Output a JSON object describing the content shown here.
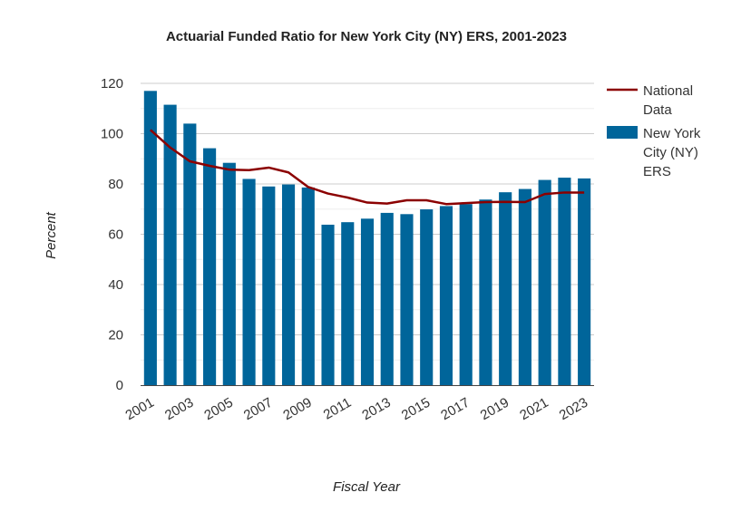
{
  "chart_data": {
    "type": "bar",
    "title": "Actuarial Funded Ratio for New York City (NY) ERS, 2001-2023",
    "xlabel": "Fiscal Year",
    "ylabel": "Percent",
    "ylim": [
      0,
      120
    ],
    "yticks": [
      0,
      20,
      40,
      60,
      80,
      100,
      120
    ],
    "grid": true,
    "legend_position": "right",
    "categories": [
      "2001",
      "2002",
      "2003",
      "2004",
      "2005",
      "2006",
      "2007",
      "2008",
      "2009",
      "2010",
      "2011",
      "2012",
      "2013",
      "2014",
      "2015",
      "2016",
      "2017",
      "2018",
      "2019",
      "2020",
      "2021",
      "2022",
      "2023"
    ],
    "x_tick_labels": [
      "2001",
      "2003",
      "2005",
      "2007",
      "2009",
      "2011",
      "2013",
      "2015",
      "2017",
      "2019",
      "2021",
      "2023"
    ],
    "series": [
      {
        "name": "New York City (NY) ERS",
        "legend_lines": [
          "New York",
          "City (NY)",
          "ERS"
        ],
        "type": "bar",
        "color": "#00659a",
        "values": [
          117,
          111.5,
          104,
          94.2,
          88.4,
          82,
          79,
          79.8,
          78.6,
          63.8,
          64.8,
          66.2,
          68.5,
          68,
          69.9,
          71.2,
          72,
          73.8,
          76.7,
          78,
          81.6,
          82.5,
          82.2
        ]
      },
      {
        "name": "National Data",
        "legend_lines": [
          "National",
          "Data"
        ],
        "type": "line",
        "color": "#8b0000",
        "values": [
          101.5,
          94.5,
          89,
          87.2,
          85.7,
          85.5,
          86.5,
          84.6,
          78.8,
          76.2,
          74.6,
          72.6,
          72.2,
          73.5,
          73.5,
          72,
          72.4,
          72.8,
          72.9,
          72.8,
          76,
          76.6,
          76.6
        ]
      }
    ]
  }
}
